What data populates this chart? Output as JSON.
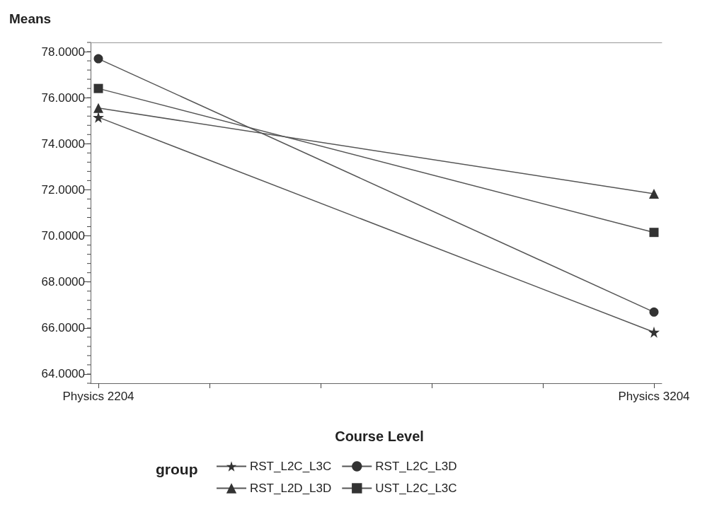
{
  "chart_data": {
    "type": "line",
    "title": "Means",
    "xlabel": "Course Level",
    "legend_title": "group",
    "categories": [
      "Physics 2204",
      "Physics 3204"
    ],
    "series": [
      {
        "name": "RST_L2C_L3C",
        "color": "#333333",
        "marker": "star",
        "values": [
          75.15,
          65.82
        ]
      },
      {
        "name": "RST_L2C_L3D",
        "color": "#333333",
        "marker": "circle",
        "values": [
          77.69,
          66.69
        ]
      },
      {
        "name": "RST_L2D_L3D",
        "color": "#333333",
        "marker": "triangle",
        "values": [
          75.55,
          71.83
        ]
      },
      {
        "name": "UST_L2C_L3C",
        "color": "#333333",
        "marker": "square",
        "values": [
          76.4,
          70.15
        ]
      }
    ],
    "ylim": [
      63.6,
      78.4
    ],
    "yticks": [
      {
        "value": 64,
        "label": "64.0000"
      },
      {
        "value": 66,
        "label": "66.0000"
      },
      {
        "value": 68,
        "label": "68.0000"
      },
      {
        "value": 70,
        "label": "70.0000"
      },
      {
        "value": 72,
        "label": "72.0000"
      },
      {
        "value": 74,
        "label": "74.0000"
      },
      {
        "value": 76,
        "label": "76.0000"
      },
      {
        "value": 78,
        "label": "78.0000"
      }
    ],
    "grid": false,
    "legend": "bottom",
    "line_style": "solid"
  }
}
